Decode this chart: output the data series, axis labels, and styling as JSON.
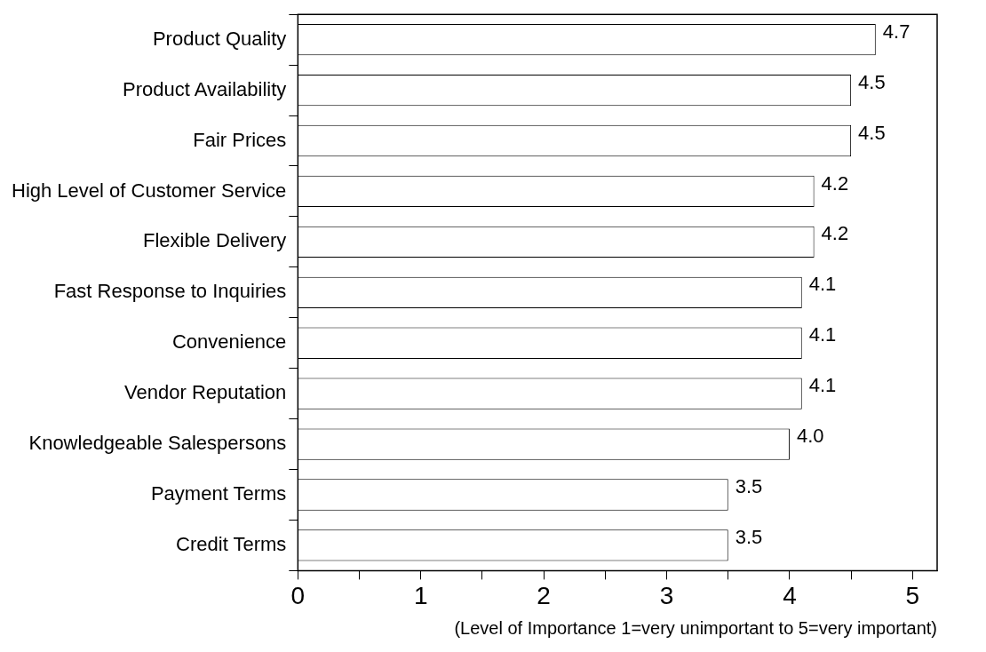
{
  "chart_data": {
    "type": "bar",
    "orientation": "horizontal",
    "xlabel": "(Level of Importance 1=very unimportant to 5=very important)",
    "categories": [
      "Product Quality",
      "Product Availability",
      "Fair Prices",
      "High Level of Customer Service",
      "Flexible Delivery",
      "Fast Response to Inquiries",
      "Convenience",
      "Vendor Reputation",
      "Knowledgeable Salespersons",
      "Payment Terms",
      "Credit Terms"
    ],
    "values": [
      4.7,
      4.5,
      4.5,
      4.2,
      4.2,
      4.1,
      4.1,
      4.1,
      4.0,
      3.5,
      3.5
    ],
    "value_labels": [
      "4.7",
      "4.5",
      "4.5",
      "4.2",
      "4.2",
      "4.1",
      "4.1",
      "4.1",
      "4.0",
      "3.5",
      "3.5"
    ],
    "color": "#ffffff",
    "xlim": [
      0,
      5.2
    ],
    "xticks": [
      0,
      {
        "value": 0.5,
        "label": null
      },
      1,
      {
        "value": 1.5,
        "label": null
      },
      2,
      {
        "value": 2.5,
        "label": null
      },
      3,
      {
        "value": 3.5,
        "label": null
      },
      4,
      {
        "value": 4.5,
        "label": null
      },
      5
    ],
    "grid": false,
    "legend": false
  }
}
